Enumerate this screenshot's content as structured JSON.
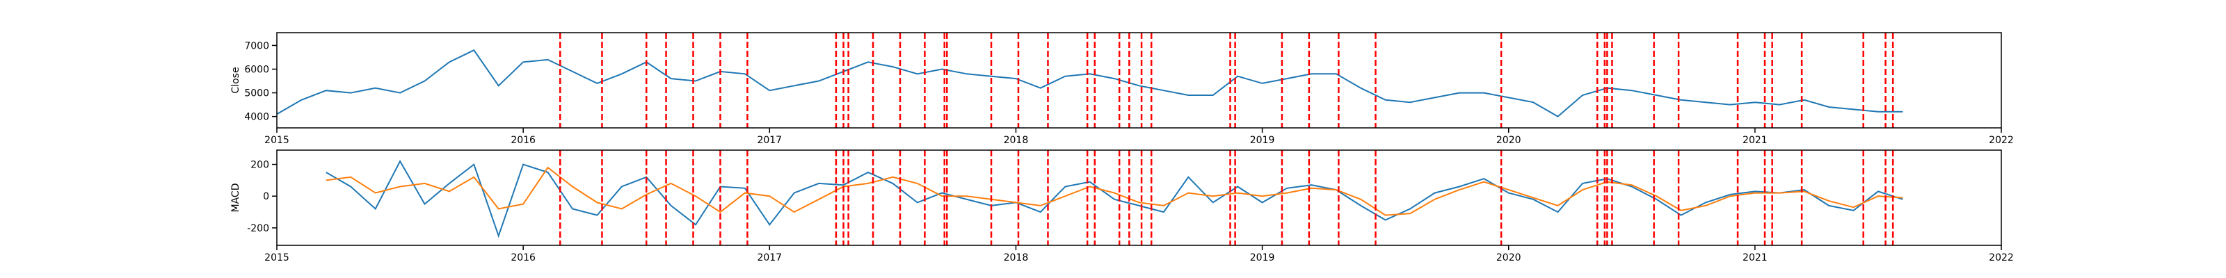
{
  "chart_data": [
    {
      "type": "line",
      "ylabel": "Close",
      "x": [
        2015.0,
        2015.1,
        2015.2,
        2015.3,
        2015.4,
        2015.5,
        2015.6,
        2015.7,
        2015.8,
        2015.9,
        2016.0,
        2016.1,
        2016.2,
        2016.3,
        2016.4,
        2016.5,
        2016.6,
        2016.7,
        2016.8,
        2016.9,
        2017.0,
        2017.1,
        2017.2,
        2017.3,
        2017.4,
        2017.5,
        2017.6,
        2017.7,
        2017.8,
        2017.9,
        2018.0,
        2018.1,
        2018.2,
        2018.3,
        2018.4,
        2018.5,
        2018.6,
        2018.7,
        2018.8,
        2018.9,
        2019.0,
        2019.1,
        2019.2,
        2019.3,
        2019.4,
        2019.5,
        2019.6,
        2019.7,
        2019.8,
        2019.9,
        2020.0,
        2020.1,
        2020.2,
        2020.3,
        2020.4,
        2020.5,
        2020.6,
        2020.7,
        2020.8,
        2020.9,
        2021.0,
        2021.1,
        2021.2,
        2021.3,
        2021.4,
        2021.5,
        2021.6
      ],
      "series": [
        {
          "color": "#1f77b4",
          "values": [
            4100,
            4700,
            5100,
            5000,
            5200,
            5000,
            5500,
            6300,
            6800,
            5300,
            6300,
            6400,
            5900,
            5400,
            5800,
            6300,
            5600,
            5500,
            5900,
            5800,
            5100,
            5300,
            5500,
            5900,
            6300,
            6100,
            5800,
            6000,
            5800,
            5700,
            5600,
            5200,
            5700,
            5800,
            5600,
            5300,
            5100,
            4900,
            4900,
            5700,
            5400,
            5600,
            5800,
            5800,
            5200,
            4700,
            4600,
            4800,
            5000,
            5000,
            4800,
            4600,
            4000,
            4900,
            5200,
            5100,
            4900,
            4700,
            4600,
            4500,
            4600,
            4500,
            4700,
            4400,
            4300,
            4200,
            4200
          ]
        }
      ],
      "vlines": [
        2016.15,
        2016.32,
        2016.5,
        2016.58,
        2016.69,
        2016.8,
        2016.91,
        2017.27,
        2017.3,
        2017.32,
        2017.42,
        2017.53,
        2017.63,
        2017.71,
        2017.72,
        2017.9,
        2018.01,
        2018.13,
        2018.29,
        2018.32,
        2018.42,
        2018.46,
        2018.51,
        2018.55,
        2018.87,
        2018.89,
        2019.08,
        2019.19,
        2019.31,
        2019.46,
        2019.97,
        2020.36,
        2020.39,
        2020.4,
        2020.42,
        2020.59,
        2020.69,
        2020.93,
        2021.04,
        2021.07,
        2021.19,
        2021.44,
        2021.53,
        2021.56
      ],
      "vline_color": "#ff0000",
      "xlim": [
        2015,
        2022
      ],
      "xticks": [
        2015,
        2016,
        2017,
        2018,
        2019,
        2020,
        2021,
        2022
      ],
      "ylim": [
        3520,
        7540
      ],
      "yticks": [
        4000,
        5000,
        6000,
        7000
      ]
    },
    {
      "type": "line",
      "ylabel": "MACD",
      "x": [
        2015.0,
        2015.1,
        2015.2,
        2015.3,
        2015.4,
        2015.5,
        2015.6,
        2015.7,
        2015.8,
        2015.9,
        2016.0,
        2016.1,
        2016.2,
        2016.3,
        2016.4,
        2016.5,
        2016.6,
        2016.7,
        2016.8,
        2016.9,
        2017.0,
        2017.1,
        2017.2,
        2017.3,
        2017.4,
        2017.5,
        2017.6,
        2017.7,
        2017.8,
        2017.9,
        2018.0,
        2018.1,
        2018.2,
        2018.3,
        2018.4,
        2018.5,
        2018.6,
        2018.7,
        2018.8,
        2018.9,
        2019.0,
        2019.1,
        2019.2,
        2019.3,
        2019.4,
        2019.5,
        2019.6,
        2019.7,
        2019.8,
        2019.9,
        2020.0,
        2020.1,
        2020.2,
        2020.3,
        2020.4,
        2020.5,
        2020.6,
        2020.7,
        2020.8,
        2020.9,
        2021.0,
        2021.1,
        2021.2,
        2021.3,
        2021.4,
        2021.5,
        2021.6
      ],
      "series": [
        {
          "color": "#1f77b4",
          "values": [
            null,
            null,
            150,
            60,
            -80,
            220,
            -50,
            80,
            200,
            -250,
            200,
            150,
            -80,
            -120,
            60,
            120,
            -60,
            -180,
            60,
            50,
            -180,
            20,
            80,
            70,
            150,
            80,
            -40,
            20,
            -20,
            -60,
            -40,
            -100,
            60,
            90,
            -20,
            -60,
            -100,
            120,
            -40,
            60,
            -40,
            50,
            70,
            40,
            -60,
            -150,
            -80,
            20,
            60,
            110,
            20,
            -20,
            -100,
            80,
            110,
            60,
            -20,
            -120,
            -40,
            10,
            30,
            20,
            40,
            -60,
            -90,
            30,
            -20
          ]
        },
        {
          "color": "#ff7f0e",
          "values": [
            null,
            null,
            100,
            120,
            20,
            60,
            80,
            30,
            120,
            -80,
            -50,
            180,
            60,
            -40,
            -80,
            10,
            80,
            0,
            -100,
            20,
            0,
            -100,
            -20,
            60,
            80,
            120,
            80,
            0,
            0,
            -20,
            -40,
            -60,
            0,
            60,
            20,
            -40,
            -60,
            20,
            0,
            20,
            0,
            20,
            50,
            40,
            -20,
            -120,
            -110,
            -20,
            40,
            90,
            40,
            -10,
            -60,
            40,
            90,
            70,
            0,
            -90,
            -60,
            0,
            20,
            20,
            30,
            -30,
            -70,
            0,
            -10
          ]
        }
      ],
      "vlines": [
        2016.15,
        2016.32,
        2016.5,
        2016.58,
        2016.69,
        2016.8,
        2016.91,
        2017.27,
        2017.3,
        2017.32,
        2017.42,
        2017.53,
        2017.63,
        2017.71,
        2017.72,
        2017.9,
        2018.01,
        2018.13,
        2018.29,
        2018.32,
        2018.42,
        2018.46,
        2018.51,
        2018.55,
        2018.87,
        2018.89,
        2019.08,
        2019.19,
        2019.31,
        2019.46,
        2019.97,
        2020.36,
        2020.39,
        2020.4,
        2020.42,
        2020.59,
        2020.69,
        2020.93,
        2021.04,
        2021.07,
        2021.19,
        2021.44,
        2021.53,
        2021.56
      ],
      "vline_color": "#ff0000",
      "xlim": [
        2015,
        2022
      ],
      "xticks": [
        2015,
        2016,
        2017,
        2018,
        2019,
        2020,
        2021,
        2022
      ],
      "ylim": [
        -310,
        290
      ],
      "yticks": [
        -200,
        0,
        200
      ]
    }
  ]
}
